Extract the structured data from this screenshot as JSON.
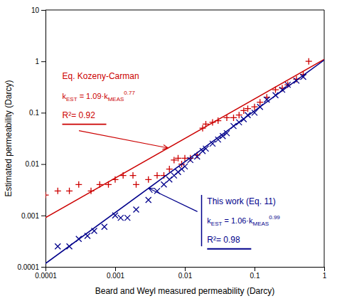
{
  "chart_data": {
    "type": "scatter",
    "x_label": "Beard and Weyl measured permeability (Darcy)",
    "y_label": "Estimated permeability (Darcy)",
    "log": true,
    "grid": false,
    "xlim": [
      0.0001,
      1
    ],
    "ylim": [
      0.0001,
      10
    ],
    "xticks": [
      0.0001,
      0.001,
      0.01,
      0.1,
      1
    ],
    "yticks": [
      0.0001,
      0.001,
      0.01,
      0.1,
      1,
      10
    ],
    "series": [
      {
        "type": "scatter",
        "marker": "plus",
        "color": "#cc0000",
        "x": [
          0.0001,
          0.00015,
          0.00022,
          0.0003,
          0.00045,
          0.0006,
          0.0008,
          0.001,
          0.0013,
          0.0018,
          0.002,
          0.003,
          0.004,
          0.005,
          0.006,
          0.007,
          0.008,
          0.009,
          0.01,
          0.012,
          0.015,
          0.018,
          0.02,
          0.025,
          0.03,
          0.04,
          0.05,
          0.06,
          0.07,
          0.08,
          0.1,
          0.12,
          0.15,
          0.2,
          0.25,
          0.3,
          0.4,
          0.5,
          0.6
        ],
        "values": [
          0.0025,
          0.003,
          0.003,
          0.004,
          0.003,
          0.004,
          0.004,
          0.005,
          0.006,
          0.006,
          0.004,
          0.005,
          0.006,
          0.006,
          0.008,
          0.012,
          0.013,
          0.01,
          0.013,
          0.013,
          0.015,
          0.05,
          0.06,
          0.065,
          0.07,
          0.08,
          0.08,
          0.09,
          0.11,
          0.12,
          0.13,
          0.16,
          0.2,
          0.28,
          0.3,
          0.35,
          0.45,
          0.55,
          1.0
        ]
      },
      {
        "type": "scatter",
        "marker": "x",
        "color": "#00008B",
        "x": [
          0.00015,
          0.00022,
          0.0003,
          0.0004,
          0.0005,
          0.0007,
          0.001,
          0.0012,
          0.0015,
          0.002,
          0.003,
          0.004,
          0.005,
          0.006,
          0.007,
          0.008,
          0.009,
          0.01,
          0.012,
          0.015,
          0.018,
          0.02,
          0.025,
          0.03,
          0.035,
          0.04,
          0.05,
          0.06,
          0.07,
          0.08,
          0.1,
          0.12,
          0.15,
          0.2,
          0.25,
          0.3,
          0.4,
          0.5
        ],
        "values": [
          0.00025,
          0.00025,
          0.00035,
          0.0004,
          0.0005,
          0.0006,
          0.001,
          0.0009,
          0.0009,
          0.0013,
          0.002,
          0.003,
          0.004,
          0.005,
          0.006,
          0.007,
          0.008,
          0.009,
          0.012,
          0.014,
          0.018,
          0.02,
          0.025,
          0.03,
          0.035,
          0.04,
          0.055,
          0.065,
          0.075,
          0.09,
          0.1,
          0.13,
          0.18,
          0.22,
          0.28,
          0.35,
          0.42,
          0.5
        ]
      },
      {
        "type": "line",
        "line_style": "solid",
        "color": "#cc0000",
        "x": [
          0.0001,
          1
        ],
        "values": [
          0.000906623,
          1.09
        ]
      },
      {
        "type": "line",
        "line_style": "solid",
        "color": "#00008B",
        "x": [
          0.0001,
          1
        ],
        "values": [
          0.000116227,
          1.06
        ]
      }
    ],
    "annotations": [
      {
        "text": "Eq. Kozeny-Carman",
        "color": "#cc0000"
      },
      {
        "text": "kEST = 1.09·kMEAS0.77",
        "color": "#cc0000"
      },
      {
        "text": "R²= 0.92",
        "color": "#cc0000"
      },
      {
        "text": "This work (Eq. 11)",
        "color": "#00008B"
      },
      {
        "text": "kEST = 1.06·kMEAS0.99",
        "color": "#00008B"
      },
      {
        "text": "R²= 0.98",
        "color": "#00008B"
      }
    ]
  }
}
